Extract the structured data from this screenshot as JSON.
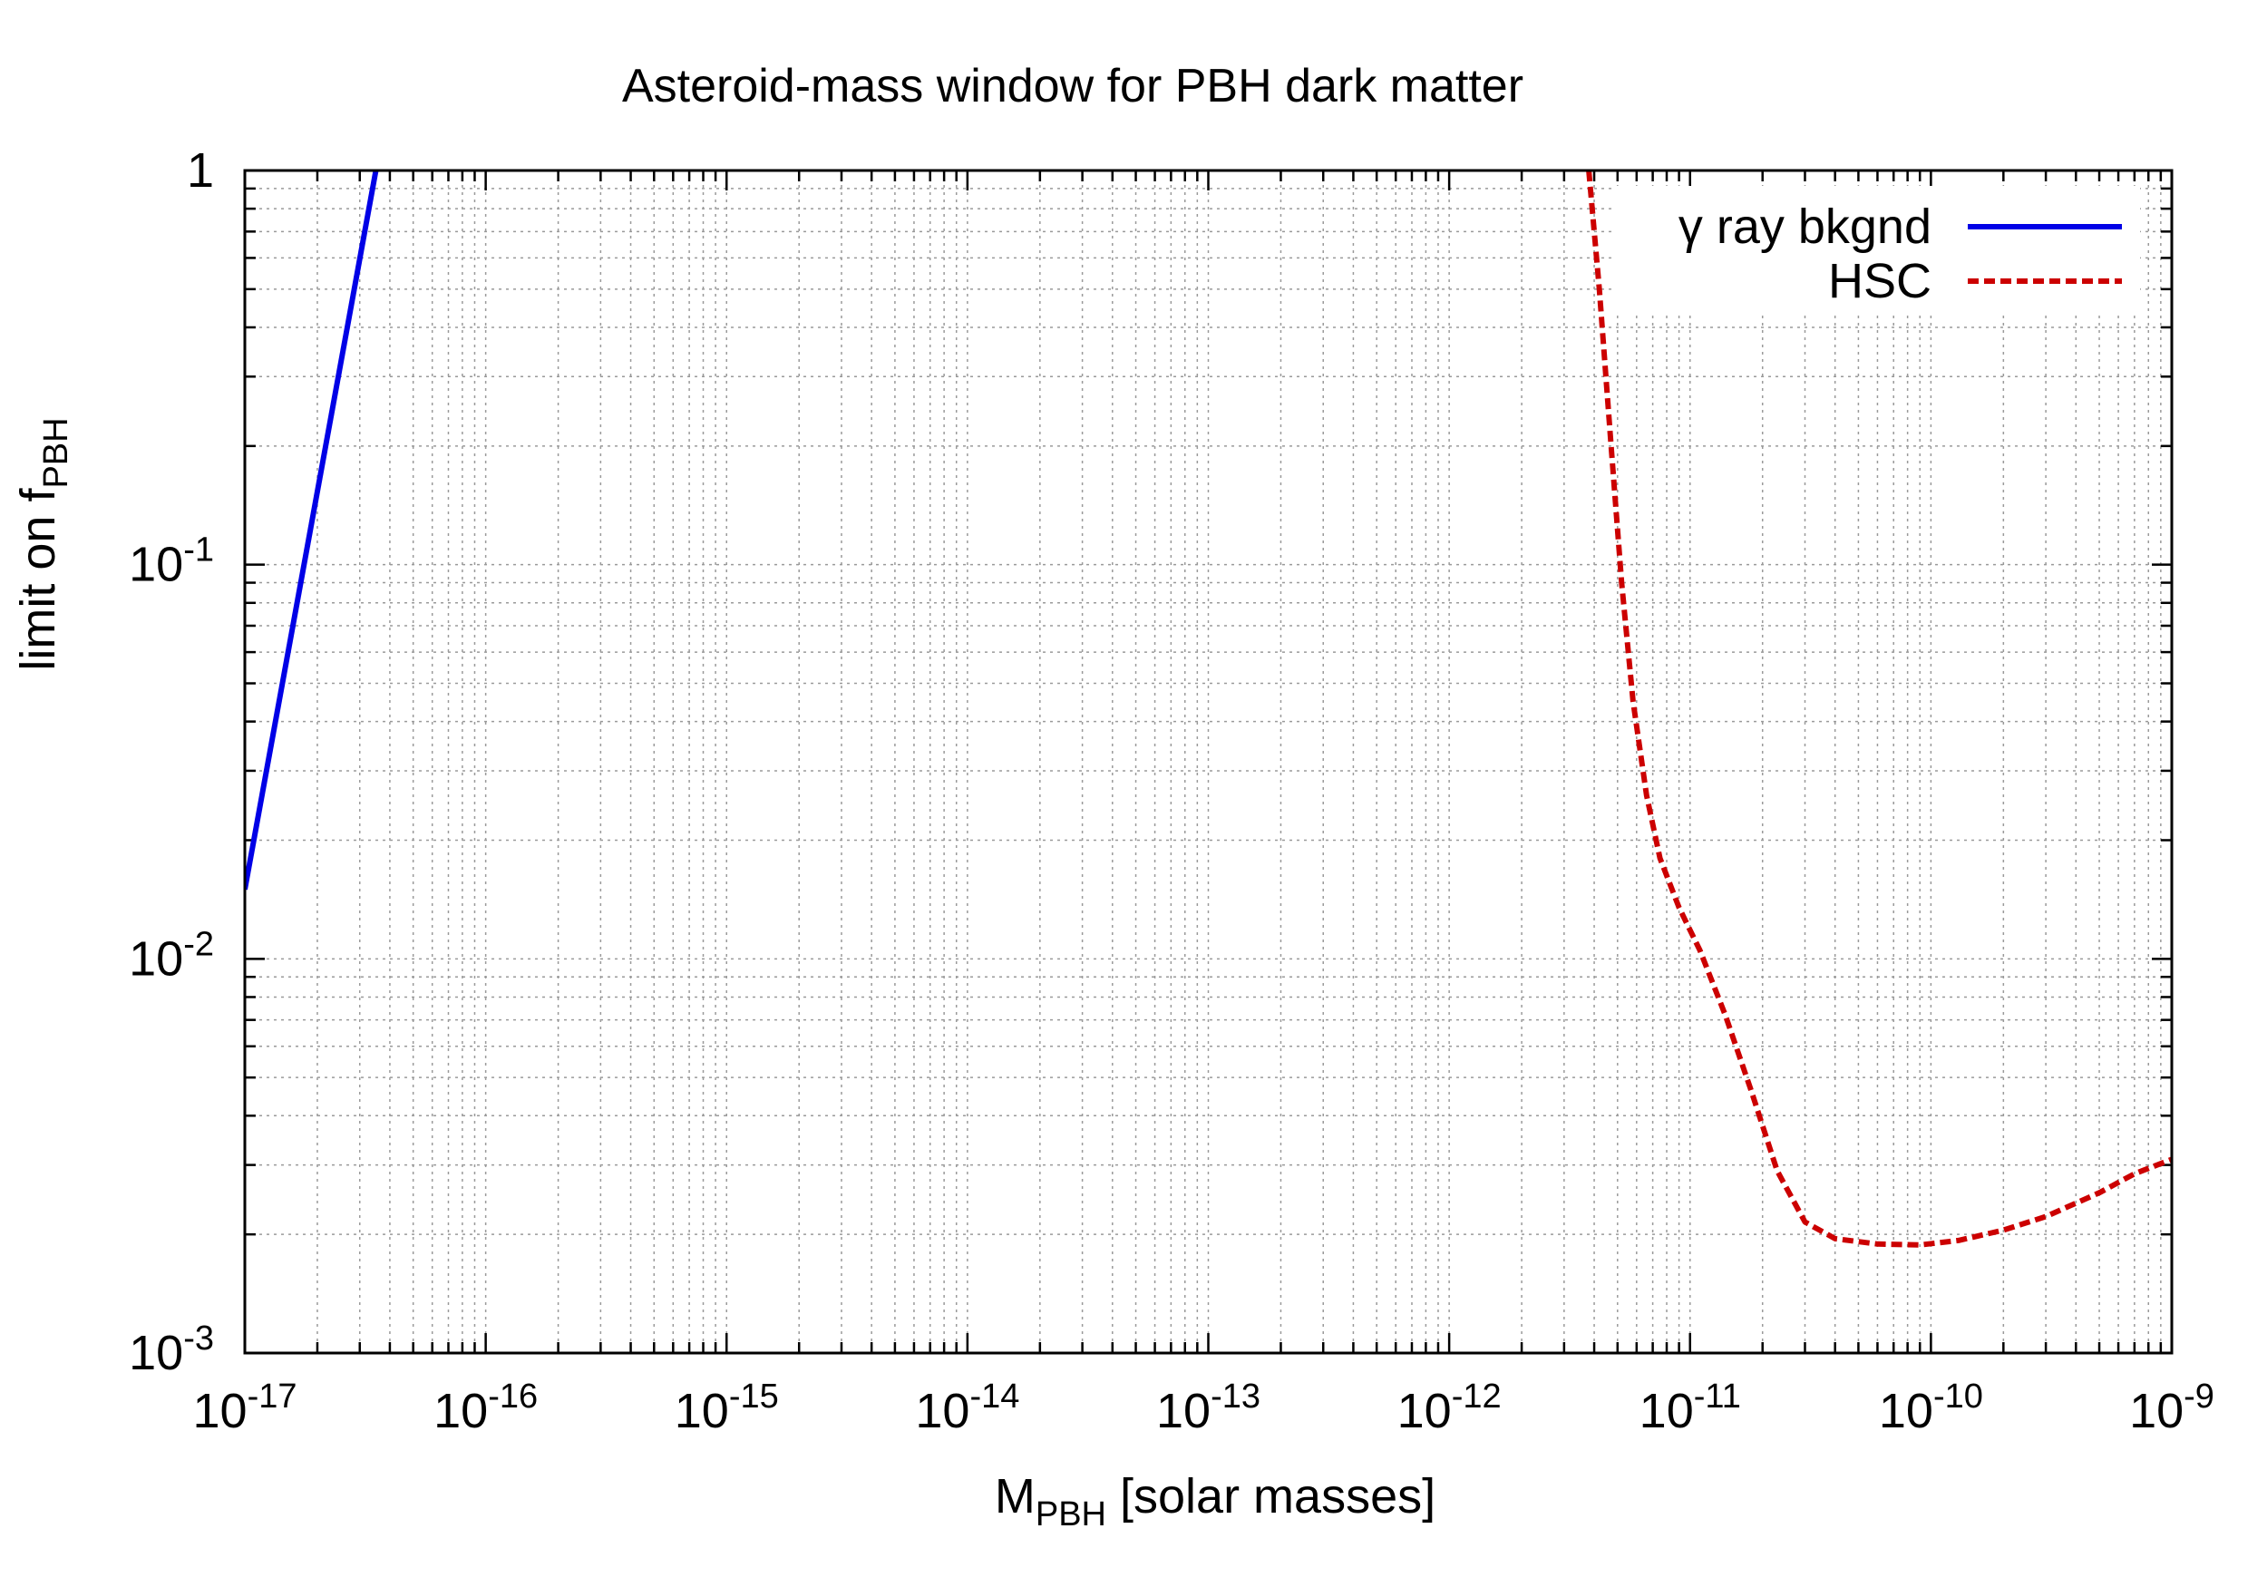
{
  "chart_data": {
    "type": "line",
    "title": "Asteroid-mass window for PBH dark matter",
    "xlabel": {
      "main": "M",
      "sub": "PBH",
      "rest": " [solar masses]"
    },
    "ylabel": {
      "main": "limit on f",
      "sub": "PBH"
    },
    "xscale": "log",
    "yscale": "log",
    "xlim": [
      1e-17,
      1e-09
    ],
    "ylim": [
      0.001,
      1
    ],
    "grid": true,
    "legend_position": "top-right",
    "x_ticks": [
      {
        "value": 1e-17,
        "base": "10",
        "exp": "-17"
      },
      {
        "value": 1e-16,
        "base": "10",
        "exp": "-16"
      },
      {
        "value": 1e-15,
        "base": "10",
        "exp": "-15"
      },
      {
        "value": 1e-14,
        "base": "10",
        "exp": "-14"
      },
      {
        "value": 1e-13,
        "base": "10",
        "exp": "-13"
      },
      {
        "value": 1e-12,
        "base": "10",
        "exp": "-12"
      },
      {
        "value": 1e-11,
        "base": "10",
        "exp": "-11"
      },
      {
        "value": 1e-10,
        "base": "10",
        "exp": "-10"
      },
      {
        "value": 1e-09,
        "base": "10",
        "exp": "-9"
      }
    ],
    "y_ticks": [
      {
        "value": 0.001,
        "base": "10",
        "exp": "-3"
      },
      {
        "value": 0.01,
        "base": "10",
        "exp": "-2"
      },
      {
        "value": 0.1,
        "base": "10",
        "exp": "-1"
      },
      {
        "value": 1,
        "base": "1",
        "exp": ""
      }
    ],
    "series": [
      {
        "name": "γ ray bkgnd",
        "color": "#0000e6",
        "style": "solid",
        "points": [
          [
            1e-17,
            0.015
          ],
          [
            3.5e-17,
            1.0
          ]
        ]
      },
      {
        "name": "HSC",
        "color": "#cc0000",
        "style": "dashed",
        "points": [
          [
            3.8e-12,
            1.0
          ],
          [
            4.2e-12,
            0.5
          ],
          [
            4.7e-12,
            0.2
          ],
          [
            5.2e-12,
            0.09
          ],
          [
            5.8e-12,
            0.045
          ],
          [
            6.6e-12,
            0.026
          ],
          [
            7.5e-12,
            0.018
          ],
          [
            9e-12,
            0.0135
          ],
          [
            1.1e-11,
            0.0105
          ],
          [
            1.4e-11,
            0.0072
          ],
          [
            1.8e-11,
            0.0046
          ],
          [
            2.3e-11,
            0.0029
          ],
          [
            3e-11,
            0.00215
          ],
          [
            4e-11,
            0.00195
          ],
          [
            6e-11,
            0.00189
          ],
          [
            9e-11,
            0.00188
          ],
          [
            1.3e-10,
            0.00193
          ],
          [
            2e-10,
            0.00205
          ],
          [
            3e-10,
            0.00222
          ],
          [
            5e-10,
            0.00255
          ],
          [
            7e-10,
            0.00285
          ],
          [
            1e-09,
            0.0031
          ]
        ]
      }
    ]
  }
}
